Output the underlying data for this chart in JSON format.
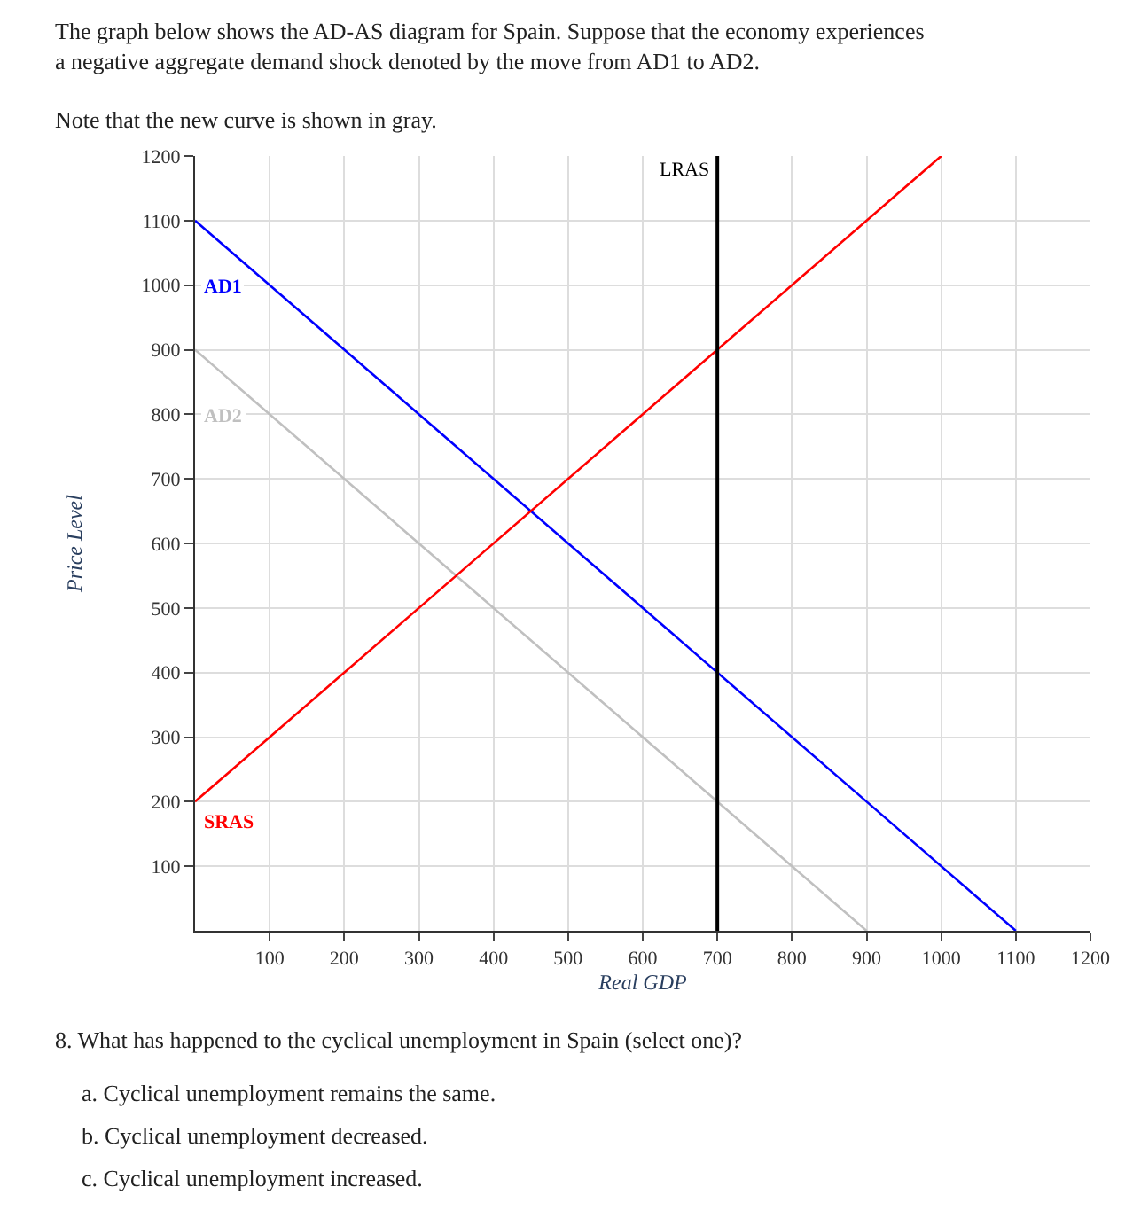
{
  "chart_data": {
    "type": "line",
    "title": "The graph below shows the AD-AS diagram for Spain. Suppose that the economy experiences a negative aggregate demand shock denoted by the move from AD1 to AD2.",
    "subtitle": "Note that the new curve is shown in gray.",
    "xlabel": "Real GDP",
    "ylabel": "Price Level",
    "series": [
      {
        "name": "AD1",
        "color": "#0000ff",
        "x": [
          0,
          1100
        ],
        "values": [
          1100,
          0
        ]
      },
      {
        "name": "AD2",
        "color": "#c0c0c0",
        "x": [
          0,
          900
        ],
        "values": [
          900,
          0
        ]
      },
      {
        "name": "SRAS",
        "color": "#ff0000",
        "x": [
          0,
          1000
        ],
        "values": [
          200,
          1200
        ]
      }
    ],
    "ref_lines": [
      {
        "axis": "x",
        "value": 700,
        "label": "LRAS",
        "color": "#000000"
      }
    ],
    "xlim": [
      0,
      1200
    ],
    "ylim": [
      0,
      1200
    ],
    "xticks": [
      100,
      200,
      300,
      400,
      500,
      600,
      700,
      800,
      900,
      1000,
      1100,
      1200
    ],
    "yticks": [
      100,
      200,
      300,
      400,
      500,
      600,
      700,
      800,
      900,
      1000,
      1100,
      1200
    ],
    "grid": true,
    "legend": false,
    "marker": "none",
    "line_style": "solid",
    "annotations": [
      "8. What has happened to the cyclical unemployment in Spain (select one)?",
      "a. Cyclical unemployment remains the same.",
      "b. Cyclical unemployment decreased.",
      "c. Cyclical unemployment increased."
    ]
  }
}
